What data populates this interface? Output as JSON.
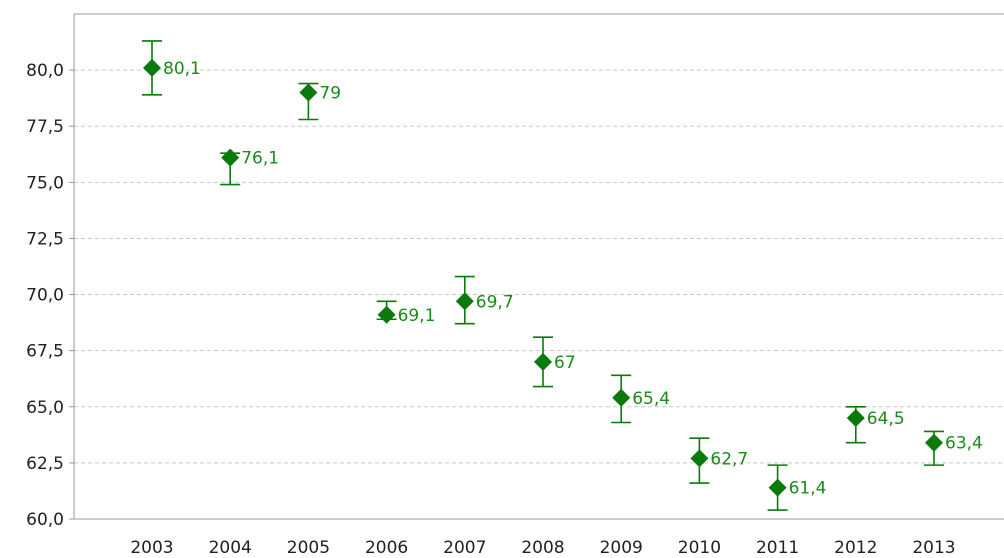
{
  "chart_data": {
    "type": "scatter",
    "title": "",
    "xlabel": "",
    "ylabel": "",
    "categories": [
      "2003",
      "2004",
      "2005",
      "2006",
      "2007",
      "2008",
      "2009",
      "2010",
      "2011",
      "2012",
      "2013"
    ],
    "series": [
      {
        "values": [
          80.1,
          76.1,
          79,
          69.1,
          69.7,
          67,
          65.4,
          62.7,
          61.4,
          64.5,
          63.4
        ],
        "error_low": [
          78.9,
          74.9,
          77.8,
          68.9,
          68.7,
          65.9,
          64.3,
          61.6,
          60.4,
          63.4,
          62.4
        ],
        "error_high": [
          81.3,
          76.3,
          79.4,
          69.7,
          70.8,
          68.1,
          66.4,
          63.6,
          62.4,
          65.0,
          63.9
        ],
        "data_labels": [
          "80,1",
          "76,1",
          "79",
          "69,1",
          "69,7",
          "67",
          "65,4",
          "62,7",
          "61,4",
          "64,5",
          "63,4"
        ]
      }
    ],
    "ylim": [
      60,
      82.5
    ],
    "y_ticks": [
      60,
      62.5,
      65,
      67.5,
      70,
      72.5,
      75,
      77.5,
      80
    ],
    "y_tick_labels": [
      "60,0",
      "62,5",
      "65,0",
      "67,5",
      "70,0",
      "72,5",
      "75,0",
      "77,5",
      "80,0"
    ],
    "grid": true,
    "legend": "none",
    "colors": {
      "marker": "#0a7a0a",
      "label": "#1a8a1a",
      "grid": "#c8c8c8",
      "axis": "#999999"
    }
  }
}
